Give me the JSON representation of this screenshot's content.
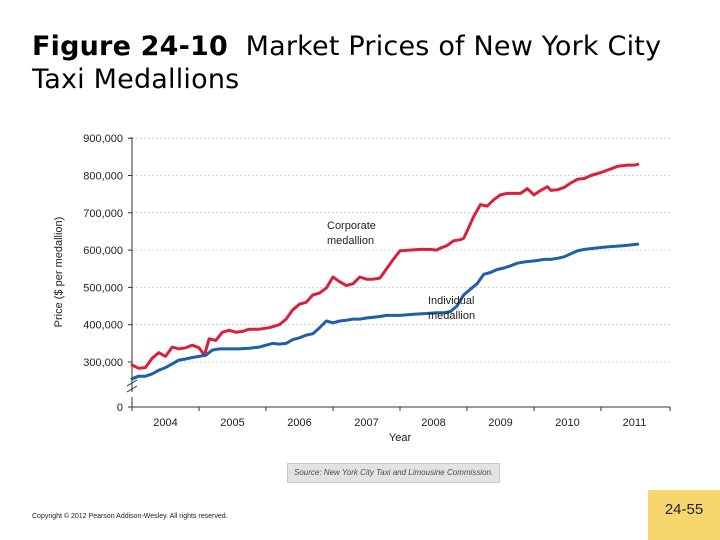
{
  "slide": {
    "title_fig": "Figure 24-10",
    "title_rest": "Market Prices of New York City Taxi Medallions",
    "source": "Source: New York City Taxi and Limousine Commission.",
    "copyright": "Copyright © 2012 Pearson Addison-Wesley. All rights reserved.",
    "page_number": "24-55"
  },
  "chart_data": {
    "type": "line",
    "title": "",
    "xlabel": "Year",
    "ylabel": "Price ($ per medallion)",
    "x_tick_labels": [
      "2004",
      "2005",
      "2006",
      "2007",
      "2008",
      "2009",
      "2010",
      "2011"
    ],
    "y_tick_labels": [
      "0",
      "300,000",
      "400,000",
      "500,000",
      "600,000",
      "700,000",
      "800,000",
      "900,000"
    ],
    "xlim": [
      2003.5,
      2011.5
    ],
    "ylim": [
      0,
      900000
    ],
    "axis_break": "between 0 and 300,000",
    "grid": "dashed horizontal",
    "series": [
      {
        "name": "Corporate medallion",
        "label_line1": "Corporate",
        "label_line2": "medallion",
        "color": "#d9213a",
        "points": [
          [
            2003.5,
            292000
          ],
          [
            2003.6,
            283000
          ],
          [
            2003.7,
            285000
          ],
          [
            2003.8,
            310000
          ],
          [
            2003.9,
            325000
          ],
          [
            2004.0,
            315000
          ],
          [
            2004.1,
            340000
          ],
          [
            2004.2,
            335000
          ],
          [
            2004.3,
            338000
          ],
          [
            2004.4,
            345000
          ],
          [
            2004.5,
            338000
          ],
          [
            2004.58,
            318000
          ],
          [
            2004.65,
            362000
          ],
          [
            2004.75,
            358000
          ],
          [
            2004.85,
            380000
          ],
          [
            2004.95,
            385000
          ],
          [
            2005.05,
            380000
          ],
          [
            2005.15,
            382000
          ],
          [
            2005.25,
            388000
          ],
          [
            2005.4,
            388000
          ],
          [
            2005.55,
            392000
          ],
          [
            2005.7,
            400000
          ],
          [
            2005.8,
            415000
          ],
          [
            2005.9,
            440000
          ],
          [
            2006.0,
            455000
          ],
          [
            2006.1,
            460000
          ],
          [
            2006.2,
            480000
          ],
          [
            2006.3,
            485000
          ],
          [
            2006.4,
            498000
          ],
          [
            2006.5,
            528000
          ],
          [
            2006.6,
            515000
          ],
          [
            2006.7,
            505000
          ],
          [
            2006.8,
            510000
          ],
          [
            2006.9,
            528000
          ],
          [
            2007.0,
            522000
          ],
          [
            2007.1,
            522000
          ],
          [
            2007.2,
            525000
          ],
          [
            2007.3,
            550000
          ],
          [
            2007.4,
            575000
          ],
          [
            2007.5,
            598000
          ],
          [
            2007.65,
            600000
          ],
          [
            2007.8,
            602000
          ],
          [
            2007.95,
            602000
          ],
          [
            2008.05,
            600000
          ],
          [
            2008.1,
            605000
          ],
          [
            2008.2,
            612000
          ],
          [
            2008.3,
            625000
          ],
          [
            2008.4,
            628000
          ],
          [
            2008.45,
            632000
          ],
          [
            2008.5,
            650000
          ],
          [
            2008.6,
            690000
          ],
          [
            2008.7,
            722000
          ],
          [
            2008.8,
            718000
          ],
          [
            2008.9,
            735000
          ],
          [
            2009.0,
            748000
          ],
          [
            2009.1,
            752000
          ],
          [
            2009.2,
            752000
          ],
          [
            2009.3,
            752000
          ],
          [
            2009.4,
            765000
          ],
          [
            2009.5,
            748000
          ],
          [
            2009.6,
            760000
          ],
          [
            2009.7,
            770000
          ],
          [
            2009.75,
            760000
          ],
          [
            2009.85,
            762000
          ],
          [
            2009.95,
            768000
          ],
          [
            2010.05,
            780000
          ],
          [
            2010.15,
            790000
          ],
          [
            2010.25,
            792000
          ],
          [
            2010.35,
            800000
          ],
          [
            2010.5,
            808000
          ],
          [
            2010.65,
            818000
          ],
          [
            2010.75,
            825000
          ],
          [
            2010.9,
            828000
          ],
          [
            2011.0,
            828000
          ],
          [
            2011.05,
            830000
          ]
        ]
      },
      {
        "name": "Individual medallion",
        "label_line1": "Individual",
        "label_line2": "medallion",
        "color": "#1f5ea8",
        "points": [
          [
            2003.5,
            255000
          ],
          [
            2003.6,
            262000
          ],
          [
            2003.7,
            262000
          ],
          [
            2003.8,
            268000
          ],
          [
            2003.9,
            278000
          ],
          [
            2004.0,
            285000
          ],
          [
            2004.1,
            295000
          ],
          [
            2004.2,
            305000
          ],
          [
            2004.3,
            308000
          ],
          [
            2004.4,
            312000
          ],
          [
            2004.5,
            315000
          ],
          [
            2004.6,
            318000
          ],
          [
            2004.7,
            332000
          ],
          [
            2004.8,
            335000
          ],
          [
            2004.95,
            335000
          ],
          [
            2005.1,
            335000
          ],
          [
            2005.25,
            337000
          ],
          [
            2005.4,
            340000
          ],
          [
            2005.5,
            345000
          ],
          [
            2005.6,
            350000
          ],
          [
            2005.7,
            348000
          ],
          [
            2005.8,
            350000
          ],
          [
            2005.9,
            360000
          ],
          [
            2006.0,
            365000
          ],
          [
            2006.1,
            372000
          ],
          [
            2006.2,
            376000
          ],
          [
            2006.3,
            392000
          ],
          [
            2006.4,
            410000
          ],
          [
            2006.5,
            405000
          ],
          [
            2006.6,
            410000
          ],
          [
            2006.7,
            412000
          ],
          [
            2006.8,
            415000
          ],
          [
            2006.9,
            415000
          ],
          [
            2007.0,
            418000
          ],
          [
            2007.1,
            420000
          ],
          [
            2007.2,
            422000
          ],
          [
            2007.3,
            425000
          ],
          [
            2007.5,
            425000
          ],
          [
            2007.7,
            428000
          ],
          [
            2007.9,
            430000
          ],
          [
            2008.05,
            432000
          ],
          [
            2008.15,
            432000
          ],
          [
            2008.25,
            435000
          ],
          [
            2008.35,
            450000
          ],
          [
            2008.45,
            480000
          ],
          [
            2008.55,
            495000
          ],
          [
            2008.65,
            510000
          ],
          [
            2008.75,
            535000
          ],
          [
            2008.85,
            540000
          ],
          [
            2008.95,
            548000
          ],
          [
            2009.05,
            552000
          ],
          [
            2009.15,
            558000
          ],
          [
            2009.25,
            565000
          ],
          [
            2009.35,
            568000
          ],
          [
            2009.45,
            570000
          ],
          [
            2009.55,
            572000
          ],
          [
            2009.65,
            575000
          ],
          [
            2009.75,
            575000
          ],
          [
            2009.85,
            578000
          ],
          [
            2009.95,
            582000
          ],
          [
            2010.05,
            590000
          ],
          [
            2010.15,
            598000
          ],
          [
            2010.25,
            602000
          ],
          [
            2010.4,
            605000
          ],
          [
            2010.55,
            608000
          ],
          [
            2010.7,
            610000
          ],
          [
            2010.85,
            612000
          ],
          [
            2010.95,
            614000
          ],
          [
            2011.05,
            616000
          ]
        ]
      }
    ]
  }
}
